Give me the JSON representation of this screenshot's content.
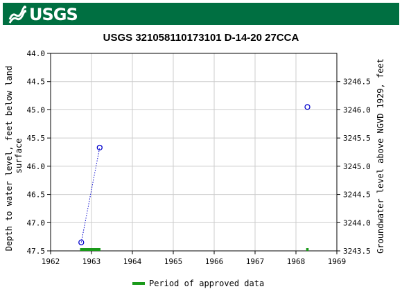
{
  "banner": {
    "logo_text": "USGS",
    "color": "#006f41"
  },
  "chart_data": {
    "type": "scatter",
    "title": "USGS 321058110173101 D-14-20 27CCA",
    "ylabel_left": "Depth to water level, feet below land surface",
    "ylabel_left_lines": [
      "Depth to water level, feet below land",
      "surface"
    ],
    "ylabel_right": "Groundwater level above NGVD 1929, feet",
    "xlim": [
      1962,
      1969
    ],
    "ylim_left": [
      44.0,
      47.5
    ],
    "ylim_left_inverted": true,
    "ylim_right": [
      3243.5,
      3247.0
    ],
    "x_ticks": [
      "1962",
      "1963",
      "1964",
      "1965",
      "1966",
      "1967",
      "1968",
      "1969"
    ],
    "y_left_ticks": [
      "44.0",
      "44.5",
      "45.0",
      "45.5",
      "46.0",
      "46.5",
      "47.0",
      "47.5"
    ],
    "y_right_ticks": [
      "3246.5",
      "3246.0",
      "3245.5",
      "3245.0",
      "3244.5",
      "3244.0",
      "3243.5"
    ],
    "grid": true,
    "series": [
      {
        "marker": "open-circle",
        "color": "#0000cc",
        "connected": "dotted",
        "x": [
          1962.75,
          1963.2,
          1968.28
        ],
        "y": [
          47.35,
          45.67,
          44.95
        ]
      }
    ],
    "approved_periods": [
      {
        "start": 1962.72,
        "end": 1963.22
      },
      {
        "start": 1968.25,
        "end": 1968.31
      }
    ],
    "legend": {
      "label": "Period of approved data",
      "color": "#1a9a1a",
      "placement": "bottom"
    }
  }
}
